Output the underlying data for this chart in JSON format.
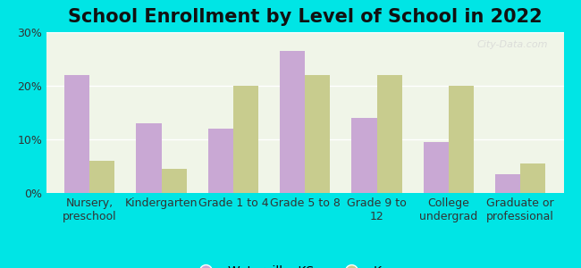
{
  "title": "School Enrollment by Level of School in 2022",
  "categories": [
    "Nursery,\npreschool",
    "Kindergarten",
    "Grade 1 to 4",
    "Grade 5 to 8",
    "Grade 9 to\n12",
    "College\nundergrad",
    "Graduate or\nprofessional"
  ],
  "waterville_values": [
    22,
    13,
    12,
    26.5,
    14,
    9.5,
    3.5
  ],
  "kansas_values": [
    6,
    4.5,
    20,
    22,
    22,
    20,
    5.5
  ],
  "waterville_color": "#c9a8d4",
  "kansas_color": "#c8cc8e",
  "background_color": "#00e5e5",
  "plot_bg_color": "#f0f5e8",
  "ylabel_ticks": [
    "0%",
    "10%",
    "20%",
    "30%"
  ],
  "ytick_values": [
    0,
    10,
    20,
    30
  ],
  "ylim": [
    0,
    30
  ],
  "title_fontsize": 15,
  "tick_fontsize": 9,
  "legend_fontsize": 10,
  "watermark_text": "City-Data.com"
}
